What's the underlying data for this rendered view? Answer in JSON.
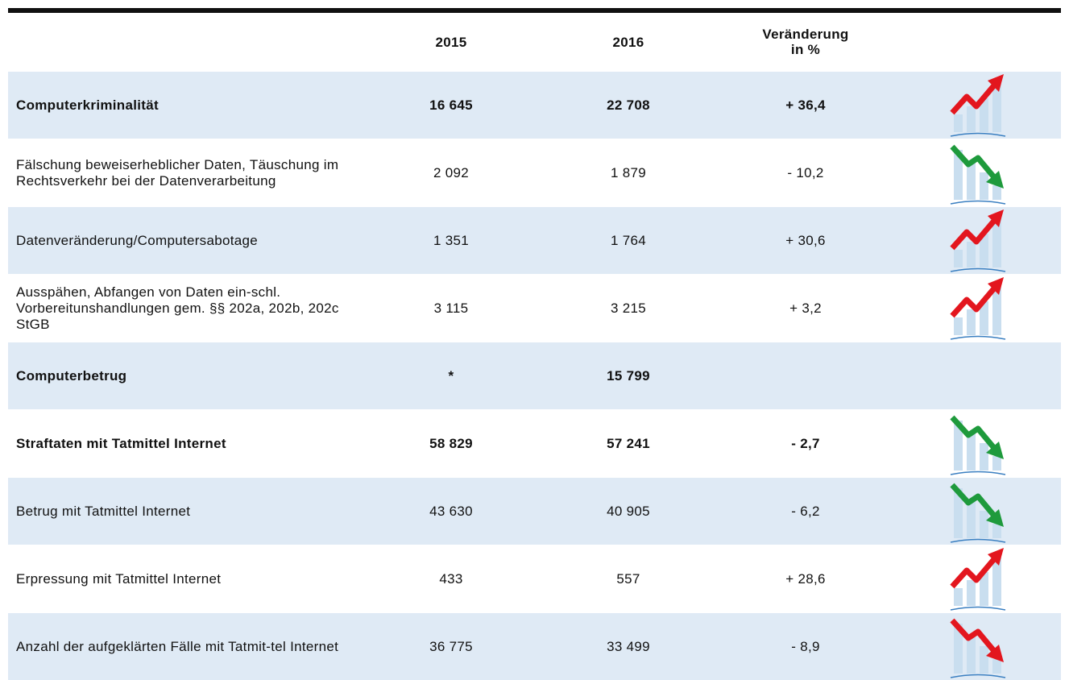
{
  "table": {
    "header": [
      "",
      "2015",
      "2016",
      "Veränderung\nin %"
    ],
    "rows": [
      {
        "cells": [
          "Computerkriminalität",
          "16 645",
          "22 708",
          "+ 36,4"
        ],
        "bold": true,
        "icon": {
          "direction": "up",
          "color": "#e3161e"
        }
      },
      {
        "cells": [
          "Fälschung beweiserheblicher Daten, Täuschung im Rechtsverkehr bei der Datenverarbeitung",
          "2 092",
          "1 879",
          "- 10,2"
        ],
        "bold": false,
        "icon": {
          "direction": "down",
          "color": "#1e9a3c"
        }
      },
      {
        "cells": [
          "Datenveränderung/Computersabotage",
          "1 351",
          "1 764",
          "+ 30,6"
        ],
        "bold": false,
        "icon": {
          "direction": "up",
          "color": "#e3161e"
        }
      },
      {
        "cells": [
          "Ausspähen, Abfangen von Daten ein-schl. Vorbereitunshandlungen gem. §§ 202a, 202b, 202c StGB",
          "3 115",
          "3 215",
          "+ 3,2"
        ],
        "bold": false,
        "icon": {
          "direction": "up",
          "color": "#e3161e"
        }
      },
      {
        "cells": [
          "Computerbetrug",
          "*",
          "15 799",
          ""
        ],
        "bold": true,
        "icon": null
      },
      {
        "cells": [
          "Straftaten mit Tatmittel Internet",
          "58 829",
          "57 241",
          "- 2,7"
        ],
        "bold": true,
        "icon": {
          "direction": "down",
          "color": "#1e9a3c"
        }
      },
      {
        "cells": [
          "Betrug mit Tatmittel Internet",
          "43 630",
          "40 905",
          "- 6,2"
        ],
        "bold": false,
        "icon": {
          "direction": "down",
          "color": "#1e9a3c"
        }
      },
      {
        "cells": [
          "Erpressung mit Tatmittel Internet",
          "433",
          "557",
          "+ 28,6"
        ],
        "bold": false,
        "icon": {
          "direction": "up",
          "color": "#e3161e"
        }
      },
      {
        "cells": [
          "Anzahl der aufgeklärten Fälle mit Tatmit-tel Internet",
          "36 775",
          "33 499",
          "- 8,9"
        ],
        "bold": false,
        "icon": {
          "direction": "down",
          "color": "#e3161e"
        }
      }
    ]
  }
}
